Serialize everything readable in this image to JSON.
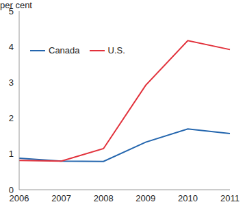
{
  "chart_data": {
    "type": "line",
    "ylabel": "per cent",
    "categories": [
      "2006",
      "2007",
      "2008",
      "2009",
      "2010",
      "2011"
    ],
    "series": [
      {
        "name": "Canada",
        "color": "#2466ae",
        "values": [
          0.88,
          0.8,
          0.79,
          1.33,
          1.7,
          1.57
        ]
      },
      {
        "name": "U.S.",
        "color": "#e2313b",
        "values": [
          0.82,
          0.8,
          1.15,
          2.92,
          4.17,
          3.92
        ]
      }
    ],
    "ylim": [
      0,
      5
    ],
    "yticks": [
      0,
      1,
      2,
      3,
      4,
      5
    ],
    "grid": false,
    "legend": "upper left"
  }
}
